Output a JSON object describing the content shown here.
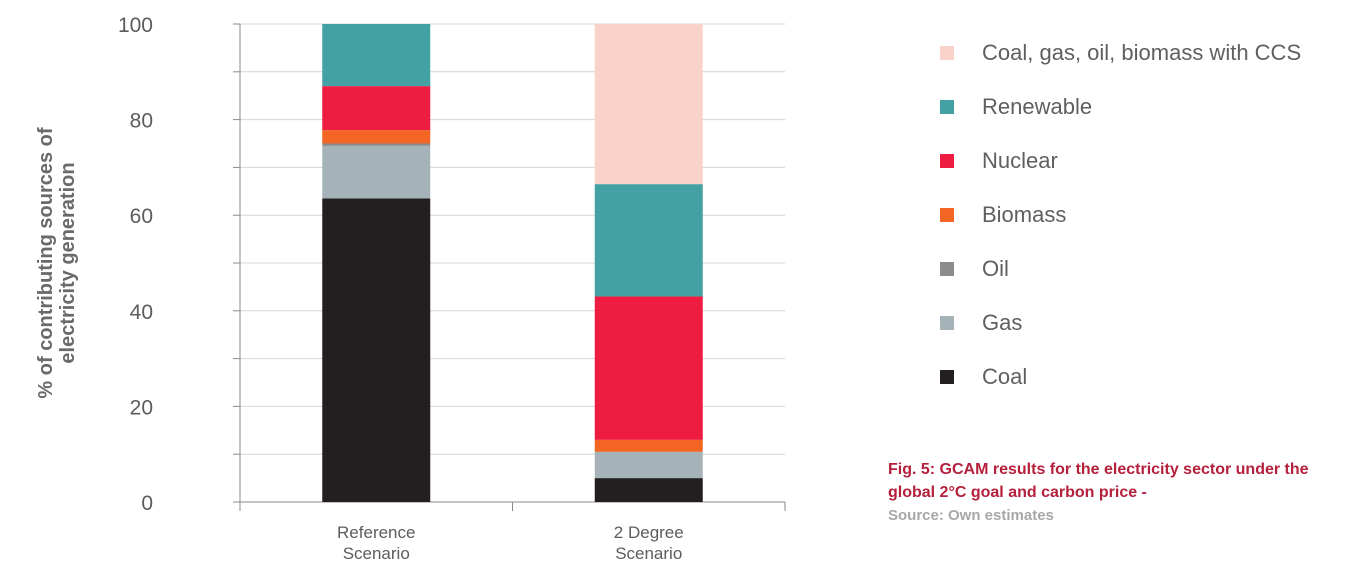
{
  "chart_data": {
    "type": "bar",
    "stacked": true,
    "categories": [
      "Reference\nScenario",
      "2 Degree\nScenario"
    ],
    "ylabel": "% of contributing sources of\nelectricity generation",
    "ylim": [
      0,
      100
    ],
    "yticks": [
      0,
      20,
      40,
      60,
      80,
      100
    ],
    "grid": true,
    "series": [
      {
        "name": "Coal",
        "color": "#231f20",
        "values": [
          63.5,
          5
        ]
      },
      {
        "name": "Gas",
        "color": "#a5b2b7",
        "values": [
          11,
          5.5
        ]
      },
      {
        "name": "Oil",
        "color": "#8c8c8c",
        "values": [
          0.5,
          0
        ]
      },
      {
        "name": "Biomass",
        "color": "#f26522",
        "values": [
          2.8,
          2.5
        ]
      },
      {
        "name": "Nuclear",
        "color": "#ed1c40",
        "values": [
          9.2,
          30
        ]
      },
      {
        "name": "Renewable",
        "color": "#43a0a3",
        "values": [
          13,
          23.5
        ]
      },
      {
        "name": "Coal, gas, oil, biomass with CCS",
        "color": "#f9d3c9",
        "values": [
          0,
          33.5
        ]
      }
    ],
    "legend": {
      "position": "right",
      "order": [
        "Coal, gas, oil, biomass with CCS",
        "Renewable",
        "Nuclear",
        "Biomass",
        "Oil",
        "Gas",
        "Coal"
      ]
    }
  },
  "caption": {
    "title": "Fig. 5: GCAM results for the electricity sector under the global 2°C goal and carbon price -",
    "source": "Source: Own estimates"
  }
}
